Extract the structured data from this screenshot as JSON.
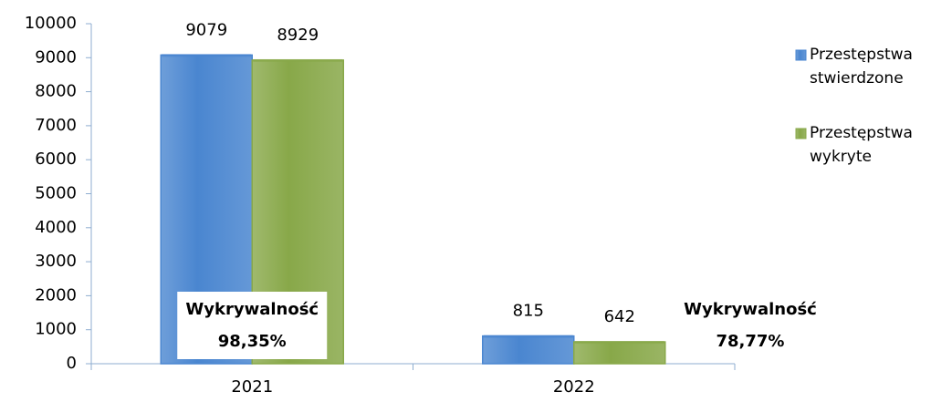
{
  "chart_data": {
    "type": "bar",
    "categories": [
      "2021",
      "2022"
    ],
    "series": [
      {
        "name": "Przestępstwa stwierdzone",
        "color": "#4a86d0",
        "values": [
          9079,
          815
        ]
      },
      {
        "name": "Przestępstwa wykryte",
        "color": "#88a849",
        "values": [
          8929,
          642
        ]
      }
    ],
    "ylim": [
      0,
      10000
    ],
    "yticks": [
      0,
      1000,
      2000,
      3000,
      4000,
      5000,
      6000,
      7000,
      8000,
      9000,
      10000
    ],
    "legend": "right",
    "annotations": [
      {
        "lines": [
          "Wykrywalność",
          "98,35%"
        ],
        "boxed": true
      },
      {
        "lines": [
          "Wykrywalność",
          "78,77%"
        ],
        "boxed": false
      }
    ]
  }
}
